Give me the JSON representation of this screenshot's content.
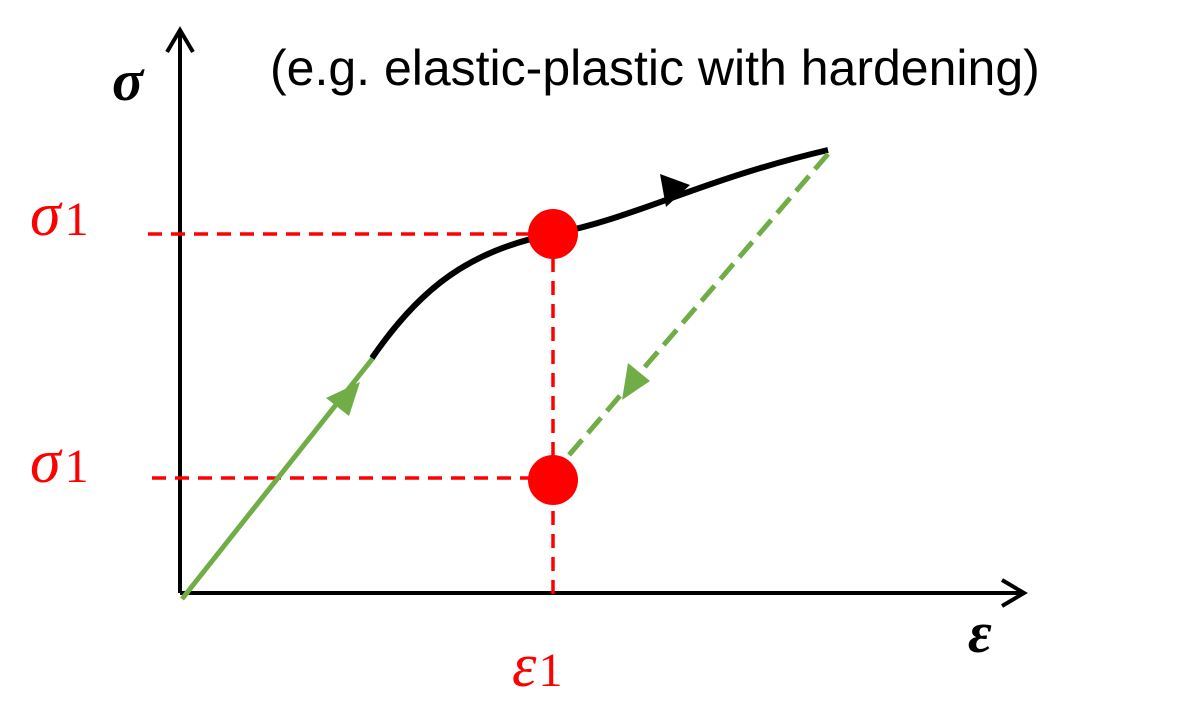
{
  "title": "(e.g. elastic-plastic with hardening)",
  "axes": {
    "y_symbol": "σ",
    "x_symbol": "ε"
  },
  "labels": {
    "sigma_upper": {
      "symbol": "σ",
      "subscript": "1"
    },
    "sigma_lower": {
      "symbol": "σ",
      "subscript": "1"
    },
    "epsilon": {
      "symbol": "ε",
      "subscript": "1"
    }
  },
  "colors": {
    "axis": "#000000",
    "plastic_curve": "#000000",
    "elastic_path": "#70ad47",
    "guide_lines": "#ff0000",
    "points": "#ff0000"
  }
}
